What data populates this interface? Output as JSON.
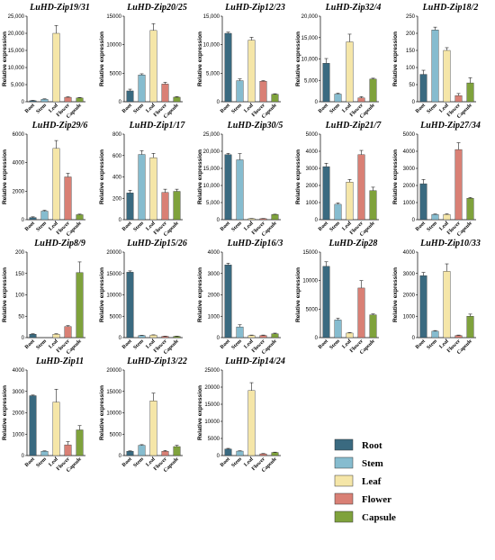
{
  "colors": {
    "Root": "#3a6a80",
    "Stem": "#86bccf",
    "Leaf": "#f5e6a8",
    "Flower": "#d98075",
    "Capsule": "#7fa23c"
  },
  "legend": [
    "Root",
    "Stem",
    "Leaf",
    "Flower",
    "Capsule"
  ],
  "chart_data": [
    {
      "type": "bar",
      "title": "LuHD-Zip19/31",
      "ylabel": "Relative expression",
      "categories": [
        "Root",
        "Stem",
        "Leaf",
        "Flower",
        "Capsule"
      ],
      "values": [
        300,
        700,
        20000,
        1300,
        1100
      ],
      "errors": [
        100,
        150,
        2300,
        150,
        150
      ],
      "ylim": [
        0,
        25000
      ],
      "yticks": [
        "0",
        "5,000",
        "10,000",
        "15,000",
        "20,000",
        "25,000"
      ]
    },
    {
      "type": "bar",
      "title": "LuHD-Zip20/25",
      "ylabel": "Relative expression",
      "categories": [
        "Root",
        "Stem",
        "Leaf",
        "Flower",
        "Capsule"
      ],
      "values": [
        1900,
        4700,
        12500,
        3100,
        800
      ],
      "errors": [
        300,
        200,
        1200,
        300,
        100
      ],
      "ylim": [
        0,
        15000
      ],
      "yticks": [
        "0",
        "5000",
        "10000",
        "15000"
      ]
    },
    {
      "type": "bar",
      "title": "LuHD-Zip12/23",
      "ylabel": "Relative expression",
      "categories": [
        "Root",
        "Stem",
        "Leaf",
        "Flower",
        "Capsule"
      ],
      "values": [
        12000,
        3700,
        10800,
        3600,
        1300
      ],
      "errors": [
        200,
        300,
        500,
        100,
        100
      ],
      "ylim": [
        0,
        15000
      ],
      "yticks": [
        "0",
        "5,000",
        "10,000",
        "15,000"
      ]
    },
    {
      "type": "bar",
      "title": "LuHD-Zip32/4",
      "ylabel": "Relative expression",
      "categories": [
        "Root",
        "Stem",
        "Leaf",
        "Flower",
        "Capsule"
      ],
      "values": [
        9000,
        1800,
        14000,
        900,
        5300
      ],
      "errors": [
        1100,
        200,
        1800,
        300,
        200
      ],
      "ylim": [
        0,
        20000
      ],
      "yticks": [
        "0",
        "5,000",
        "10,000",
        "15,000",
        "20,000"
      ]
    },
    {
      "type": "bar",
      "title": "LuHD-Zip18/2",
      "ylabel": "Relative expression",
      "categories": [
        "Root",
        "Stem",
        "Leaf",
        "Flower",
        "Capsule"
      ],
      "values": [
        80,
        210,
        150,
        18,
        55
      ],
      "errors": [
        12,
        8,
        8,
        6,
        15
      ],
      "ylim": [
        0,
        250
      ],
      "yticks": [
        "0",
        "50",
        "100",
        "150",
        "200",
        "250"
      ]
    },
    {
      "type": "bar",
      "title": "LuHD-Zip29/6",
      "ylabel": "Relative expression",
      "categories": [
        "Root",
        "Stem",
        "Leaf",
        "Flower",
        "Capsule"
      ],
      "values": [
        150,
        600,
        5000,
        3000,
        350
      ],
      "errors": [
        50,
        60,
        550,
        250,
        40
      ],
      "ylim": [
        0,
        6000
      ],
      "yticks": [
        "0",
        "2000",
        "4000",
        "6000"
      ]
    },
    {
      "type": "bar",
      "title": "LuHD-Zip1/17",
      "ylabel": "Relative expression",
      "categories": [
        "Root",
        "Stem",
        "Leaf",
        "Flower",
        "Capsule"
      ],
      "values": [
        250,
        610,
        580,
        255,
        265
      ],
      "errors": [
        25,
        35,
        40,
        30,
        20
      ],
      "ylim": [
        0,
        800
      ],
      "yticks": [
        "0",
        "200",
        "400",
        "600",
        "800"
      ]
    },
    {
      "type": "bar",
      "title": "LuHD-Zip30/5",
      "ylabel": "Relative expression",
      "categories": [
        "Root",
        "Stem",
        "Leaf",
        "Flower",
        "Capsule"
      ],
      "values": [
        19000,
        17500,
        300,
        300,
        1500
      ],
      "errors": [
        400,
        1800,
        50,
        50,
        100
      ],
      "ylim": [
        0,
        25000
      ],
      "yticks": [
        "0",
        "5,000",
        "10,000",
        "15,000",
        "20,000",
        "25,000"
      ]
    },
    {
      "type": "bar",
      "title": "LuHD-Zip21/7",
      "ylabel": "Relative expression",
      "categories": [
        "Root",
        "Stem",
        "Leaf",
        "Flower",
        "Capsule"
      ],
      "values": [
        3100,
        900,
        2200,
        3800,
        1700
      ],
      "errors": [
        200,
        80,
        150,
        250,
        200
      ],
      "ylim": [
        0,
        5000
      ],
      "yticks": [
        "0",
        "1000",
        "2000",
        "3000",
        "4000",
        "5000"
      ]
    },
    {
      "type": "bar",
      "title": "LuHD-Zip27/34",
      "ylabel": "Relative expression",
      "categories": [
        "Root",
        "Stem",
        "Leaf",
        "Flower",
        "Capsule"
      ],
      "values": [
        2100,
        300,
        300,
        4100,
        1250
      ],
      "errors": [
        250,
        30,
        40,
        400,
        50
      ],
      "ylim": [
        0,
        5000
      ],
      "yticks": [
        "0",
        "1000",
        "2000",
        "3000",
        "4000",
        "5000"
      ]
    },
    {
      "type": "bar",
      "title": "LuHD-Zip8/9",
      "ylabel": "Relative expression",
      "categories": [
        "Root",
        "Stem",
        "Leaf",
        "Flower",
        "Capsule"
      ],
      "values": [
        8,
        0,
        8,
        26,
        152
      ],
      "errors": [
        1,
        0,
        1,
        2,
        25
      ],
      "ylim": [
        0,
        200
      ],
      "yticks": [
        "0",
        "50",
        "100",
        "150",
        "200"
      ]
    },
    {
      "type": "bar",
      "title": "LuHD-Zip15/26",
      "ylabel": "Relative expression",
      "categories": [
        "Root",
        "Stem",
        "Leaf",
        "Flower",
        "Capsule"
      ],
      "values": [
        15300,
        500,
        600,
        300,
        300
      ],
      "errors": [
        300,
        50,
        50,
        50,
        50
      ],
      "ylim": [
        0,
        20000
      ],
      "yticks": [
        "0",
        "5000",
        "10000",
        "15000",
        "20000"
      ]
    },
    {
      "type": "bar",
      "title": "LuHD-Zip16/3",
      "ylabel": "Relative expression",
      "categories": [
        "Root",
        "Stem",
        "Leaf",
        "Flower",
        "Capsule"
      ],
      "values": [
        3400,
        500,
        100,
        100,
        180
      ],
      "errors": [
        80,
        100,
        20,
        20,
        30
      ],
      "ylim": [
        0,
        4000
      ],
      "yticks": [
        "0",
        "1000",
        "2000",
        "3000",
        "4000"
      ]
    },
    {
      "type": "bar",
      "title": "LuHD-Zip28",
      "ylabel": "Relative expression",
      "categories": [
        "Root",
        "Stem",
        "Leaf",
        "Flower",
        "Capsule"
      ],
      "values": [
        12500,
        3100,
        800,
        8700,
        4000
      ],
      "errors": [
        800,
        300,
        100,
        1300,
        150
      ],
      "ylim": [
        0,
        15000
      ],
      "yticks": [
        "0",
        "5000",
        "10000",
        "15000"
      ]
    },
    {
      "type": "bar",
      "title": "LuHD-Zip10/33",
      "ylabel": "Relative expression",
      "categories": [
        "Root",
        "Stem",
        "Leaf",
        "Flower",
        "Capsule"
      ],
      "values": [
        2900,
        300,
        3100,
        100,
        1000
      ],
      "errors": [
        150,
        30,
        350,
        20,
        100
      ],
      "ylim": [
        0,
        4000
      ],
      "yticks": [
        "0",
        "1000",
        "2000",
        "3000",
        "4000"
      ]
    },
    {
      "type": "bar",
      "title": "LuHD-Zip11",
      "ylabel": "Relative expression",
      "categories": [
        "Root",
        "Stem",
        "Leaf",
        "Flower",
        "Capsule"
      ],
      "values": [
        2800,
        200,
        2500,
        500,
        1200
      ],
      "errors": [
        30,
        20,
        600,
        150,
        200
      ],
      "ylim": [
        0,
        4000
      ],
      "yticks": [
        "0",
        "1000",
        "2000",
        "3000",
        "4000"
      ]
    },
    {
      "type": "bar",
      "title": "LuHD-Zip13/22",
      "ylabel": "Relative expression",
      "categories": [
        "Root",
        "Stem",
        "Leaf",
        "Flower",
        "Capsule"
      ],
      "values": [
        1000,
        2400,
        12800,
        1000,
        2100
      ],
      "errors": [
        100,
        150,
        1800,
        200,
        300
      ],
      "ylim": [
        0,
        20000
      ],
      "yticks": [
        "0",
        "5000",
        "10000",
        "15000",
        "20000"
      ]
    },
    {
      "type": "bar",
      "title": "LuHD-Zip14/24",
      "ylabel": "Relative expression",
      "categories": [
        "Root",
        "Stem",
        "Leaf",
        "Flower",
        "Capsule"
      ],
      "values": [
        1900,
        1300,
        19000,
        500,
        900
      ],
      "errors": [
        200,
        100,
        2300,
        100,
        100
      ],
      "ylim": [
        0,
        25000
      ],
      "yticks": [
        "0",
        "5000",
        "10000",
        "15000",
        "20000",
        "25000"
      ]
    }
  ]
}
